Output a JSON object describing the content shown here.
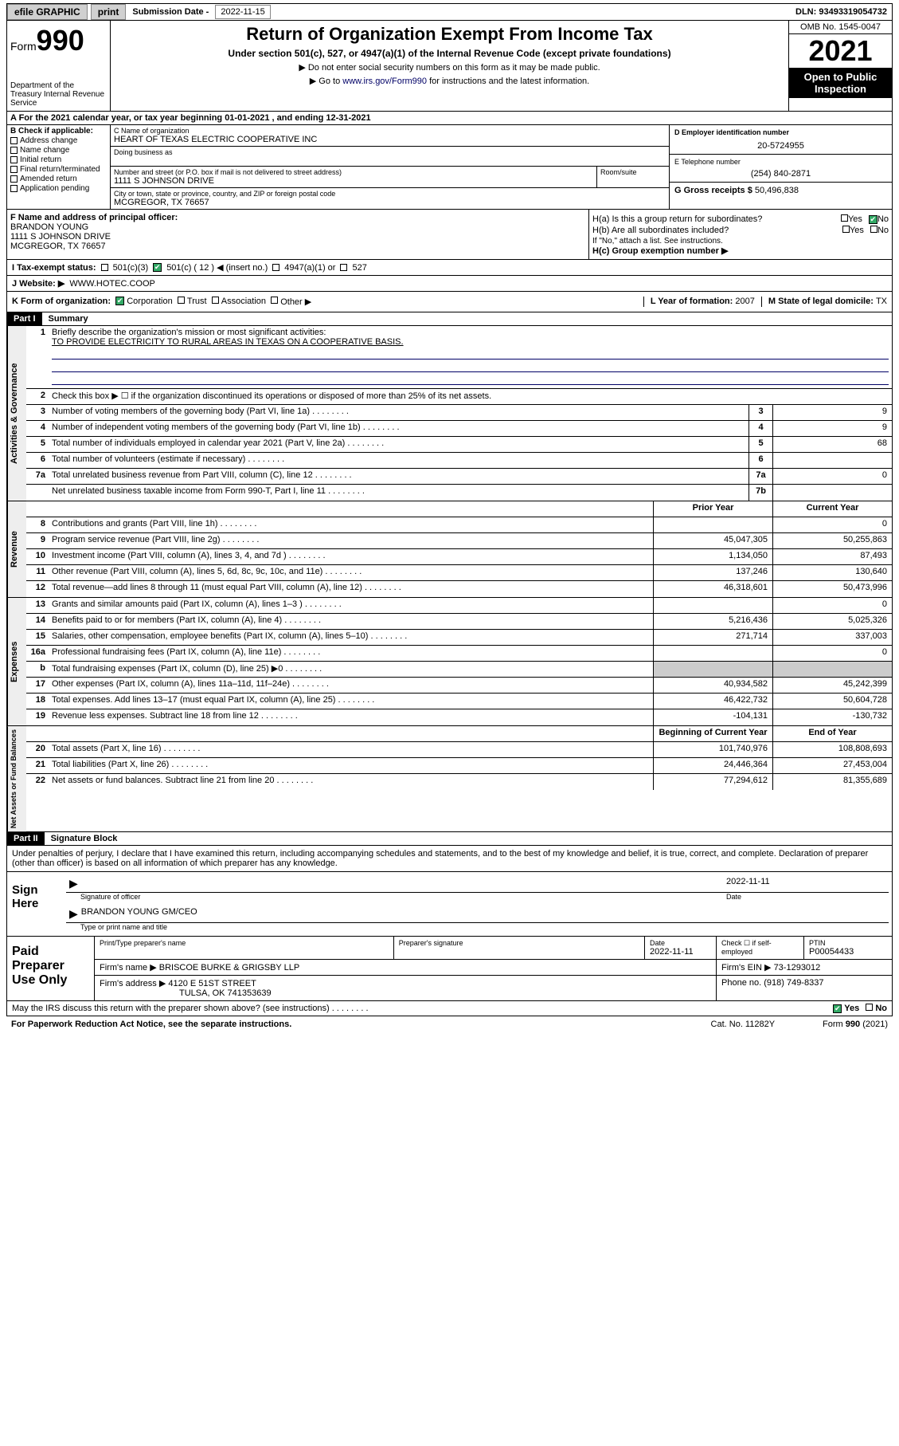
{
  "topbar": {
    "efile_label": "efile GRAPHIC",
    "print_btn": "print",
    "sub_date_label": "Submission Date - ",
    "sub_date": "2022-11-15",
    "dln_label": "DLN: ",
    "dln": "93493319054732"
  },
  "header": {
    "form_word": "Form",
    "form_num": "990",
    "title": "Return of Organization Exempt From Income Tax",
    "subtitle": "Under section 501(c), 527, or 4947(a)(1) of the Internal Revenue Code (except private foundations)",
    "note1": "▶ Do not enter social security numbers on this form as it may be made public.",
    "note2_pre": "▶ Go to ",
    "note2_link": "www.irs.gov/Form990",
    "note2_post": " for instructions and the latest information.",
    "dept": "Department of the Treasury Internal Revenue Service",
    "omb": "OMB No. 1545-0047",
    "year": "2021",
    "open_pub": "Open to Public Inspection"
  },
  "row_a": "A For the 2021 calendar year, or tax year beginning 01-01-2021   , and ending 12-31-2021",
  "section_b": {
    "b_label": "B Check if applicable:",
    "checks": [
      "Address change",
      "Name change",
      "Initial return",
      "Final return/terminated",
      "Amended return",
      "Application pending"
    ],
    "c_name_label": "C Name of organization",
    "c_name": "HEART OF TEXAS ELECTRIC COOPERATIVE INC",
    "dba_label": "Doing business as",
    "addr_label": "Number and street (or P.O. box if mail is not delivered to street address)",
    "addr": "1111 S JOHNSON DRIVE",
    "room_label": "Room/suite",
    "city_label": "City or town, state or province, country, and ZIP or foreign postal code",
    "city": "MCGREGOR, TX  76657",
    "d_label": "D Employer identification number",
    "d_val": "20-5724955",
    "e_label": "E Telephone number",
    "e_val": "(254) 840-2871",
    "g_label": "G Gross receipts $ ",
    "g_val": "50,496,838"
  },
  "section_f": {
    "f_label": "F  Name and address of principal officer:",
    "f_name": "BRANDON YOUNG",
    "f_addr1": "1111 S JOHNSON DRIVE",
    "f_addr2": "MCGREGOR, TX  76657",
    "ha_label": "H(a)  Is this a group return for subordinates?",
    "hb_label": "H(b)  Are all subordinates included?",
    "hb_note": "If \"No,\" attach a list. See instructions.",
    "hc_label": "H(c)  Group exemption number ▶",
    "yes": "Yes",
    "no": "No"
  },
  "row_i": {
    "label": "I   Tax-exempt status:",
    "o501c3": "501(c)(3)",
    "o501c": "501(c) ( 12 ) ◀ (insert no.)",
    "o4947": "4947(a)(1) or",
    "o527": "527"
  },
  "row_j": {
    "label": "J   Website: ▶",
    "val": "WWW.HOTEC.COOP"
  },
  "row_k": {
    "label": "K Form of organization:",
    "corp": "Corporation",
    "trust": "Trust",
    "assoc": "Association",
    "other": "Other ▶",
    "l_label": "L Year of formation: ",
    "l_val": "2007",
    "m_label": "M State of legal domicile: ",
    "m_val": "TX"
  },
  "part1": {
    "hdr": "Part I",
    "title": "Summary",
    "line1_label": "Briefly describe the organization's mission or most significant activities:",
    "line1_val": "TO PROVIDE ELECTRICITY TO RURAL AREAS IN TEXAS ON A COOPERATIVE BASIS.",
    "line2": "Check this box ▶ ☐  if the organization discontinued its operations or disposed of more than 25% of its net assets.",
    "tabs": {
      "gov": "Activities & Governance",
      "rev": "Revenue",
      "exp": "Expenses",
      "net": "Net Assets or Fund Balances"
    },
    "cols": {
      "prior": "Prior Year",
      "current": "Current Year",
      "boy": "Beginning of Current Year",
      "eoy": "End of Year"
    },
    "lines_gov": [
      {
        "n": "3",
        "t": "Number of voting members of the governing body (Part VI, line 1a)",
        "box": "3",
        "v": "9"
      },
      {
        "n": "4",
        "t": "Number of independent voting members of the governing body (Part VI, line 1b)",
        "box": "4",
        "v": "9"
      },
      {
        "n": "5",
        "t": "Total number of individuals employed in calendar year 2021 (Part V, line 2a)",
        "box": "5",
        "v": "68"
      },
      {
        "n": "6",
        "t": "Total number of volunteers (estimate if necessary)",
        "box": "6",
        "v": ""
      },
      {
        "n": "7a",
        "t": "Total unrelated business revenue from Part VIII, column (C), line 12",
        "box": "7a",
        "v": "0"
      },
      {
        "n": "",
        "t": "Net unrelated business taxable income from Form 990-T, Part I, line 11",
        "box": "7b",
        "v": ""
      }
    ],
    "lines_rev": [
      {
        "n": "8",
        "t": "Contributions and grants (Part VIII, line 1h)",
        "p": "",
        "c": "0"
      },
      {
        "n": "9",
        "t": "Program service revenue (Part VIII, line 2g)",
        "p": "45,047,305",
        "c": "50,255,863"
      },
      {
        "n": "10",
        "t": "Investment income (Part VIII, column (A), lines 3, 4, and 7d )",
        "p": "1,134,050",
        "c": "87,493"
      },
      {
        "n": "11",
        "t": "Other revenue (Part VIII, column (A), lines 5, 6d, 8c, 9c, 10c, and 11e)",
        "p": "137,246",
        "c": "130,640"
      },
      {
        "n": "12",
        "t": "Total revenue—add lines 8 through 11 (must equal Part VIII, column (A), line 12)",
        "p": "46,318,601",
        "c": "50,473,996"
      }
    ],
    "lines_exp": [
      {
        "n": "13",
        "t": "Grants and similar amounts paid (Part IX, column (A), lines 1–3 )",
        "p": "",
        "c": "0"
      },
      {
        "n": "14",
        "t": "Benefits paid to or for members (Part IX, column (A), line 4)",
        "p": "5,216,436",
        "c": "5,025,326"
      },
      {
        "n": "15",
        "t": "Salaries, other compensation, employee benefits (Part IX, column (A), lines 5–10)",
        "p": "271,714",
        "c": "337,003"
      },
      {
        "n": "16a",
        "t": "Professional fundraising fees (Part IX, column (A), line 11e)",
        "p": "",
        "c": "0"
      },
      {
        "n": "b",
        "t": "Total fundraising expenses (Part IX, column (D), line 25) ▶0",
        "p": "shade",
        "c": "shade"
      },
      {
        "n": "17",
        "t": "Other expenses (Part IX, column (A), lines 11a–11d, 11f–24e)",
        "p": "40,934,582",
        "c": "45,242,399"
      },
      {
        "n": "18",
        "t": "Total expenses. Add lines 13–17 (must equal Part IX, column (A), line 25)",
        "p": "46,422,732",
        "c": "50,604,728"
      },
      {
        "n": "19",
        "t": "Revenue less expenses. Subtract line 18 from line 12",
        "p": "-104,131",
        "c": "-130,732"
      }
    ],
    "lines_net": [
      {
        "n": "20",
        "t": "Total assets (Part X, line 16)",
        "p": "101,740,976",
        "c": "108,808,693"
      },
      {
        "n": "21",
        "t": "Total liabilities (Part X, line 26)",
        "p": "24,446,364",
        "c": "27,453,004"
      },
      {
        "n": "22",
        "t": "Net assets or fund balances. Subtract line 21 from line 20",
        "p": "77,294,612",
        "c": "81,355,689"
      }
    ]
  },
  "part2": {
    "hdr": "Part II",
    "title": "Signature Block",
    "intro": "Under penalties of perjury, I declare that I have examined this return, including accompanying schedules and statements, and to the best of my knowledge and belief, it is true, correct, and complete. Declaration of preparer (other than officer) is based on all information of which preparer has any knowledge.",
    "sign_here": "Sign Here",
    "sig_officer": "Signature of officer",
    "sig_date": "2022-11-11",
    "date_lbl": "Date",
    "officer_name": "BRANDON YOUNG  GM/CEO",
    "type_name": "Type or print name and title",
    "paid": "Paid Preparer Use Only",
    "pt_name_lbl": "Print/Type preparer's name",
    "pt_sig_lbl": "Preparer's signature",
    "pt_date_lbl": "Date",
    "pt_date": "2022-11-11",
    "pt_check": "Check ☐ if self-employed",
    "ptin_lbl": "PTIN",
    "ptin": "P00054433",
    "firm_name_lbl": "Firm's name    ▶ ",
    "firm_name": "BRISCOE BURKE & GRIGSBY LLP",
    "firm_ein_lbl": "Firm's EIN ▶ ",
    "firm_ein": "73-1293012",
    "firm_addr_lbl": "Firm's address ▶ ",
    "firm_addr": "4120 E 51ST STREET",
    "firm_city": "TULSA, OK  741353639",
    "phone_lbl": "Phone no. ",
    "phone": "(918) 749-8337",
    "may_irs": "May the IRS discuss this return with the preparer shown above? (see instructions)",
    "paperwork": "For Paperwork Reduction Act Notice, see the separate instructions.",
    "catno": "Cat. No. 11282Y",
    "formfoot": "Form 990 (2021)"
  }
}
